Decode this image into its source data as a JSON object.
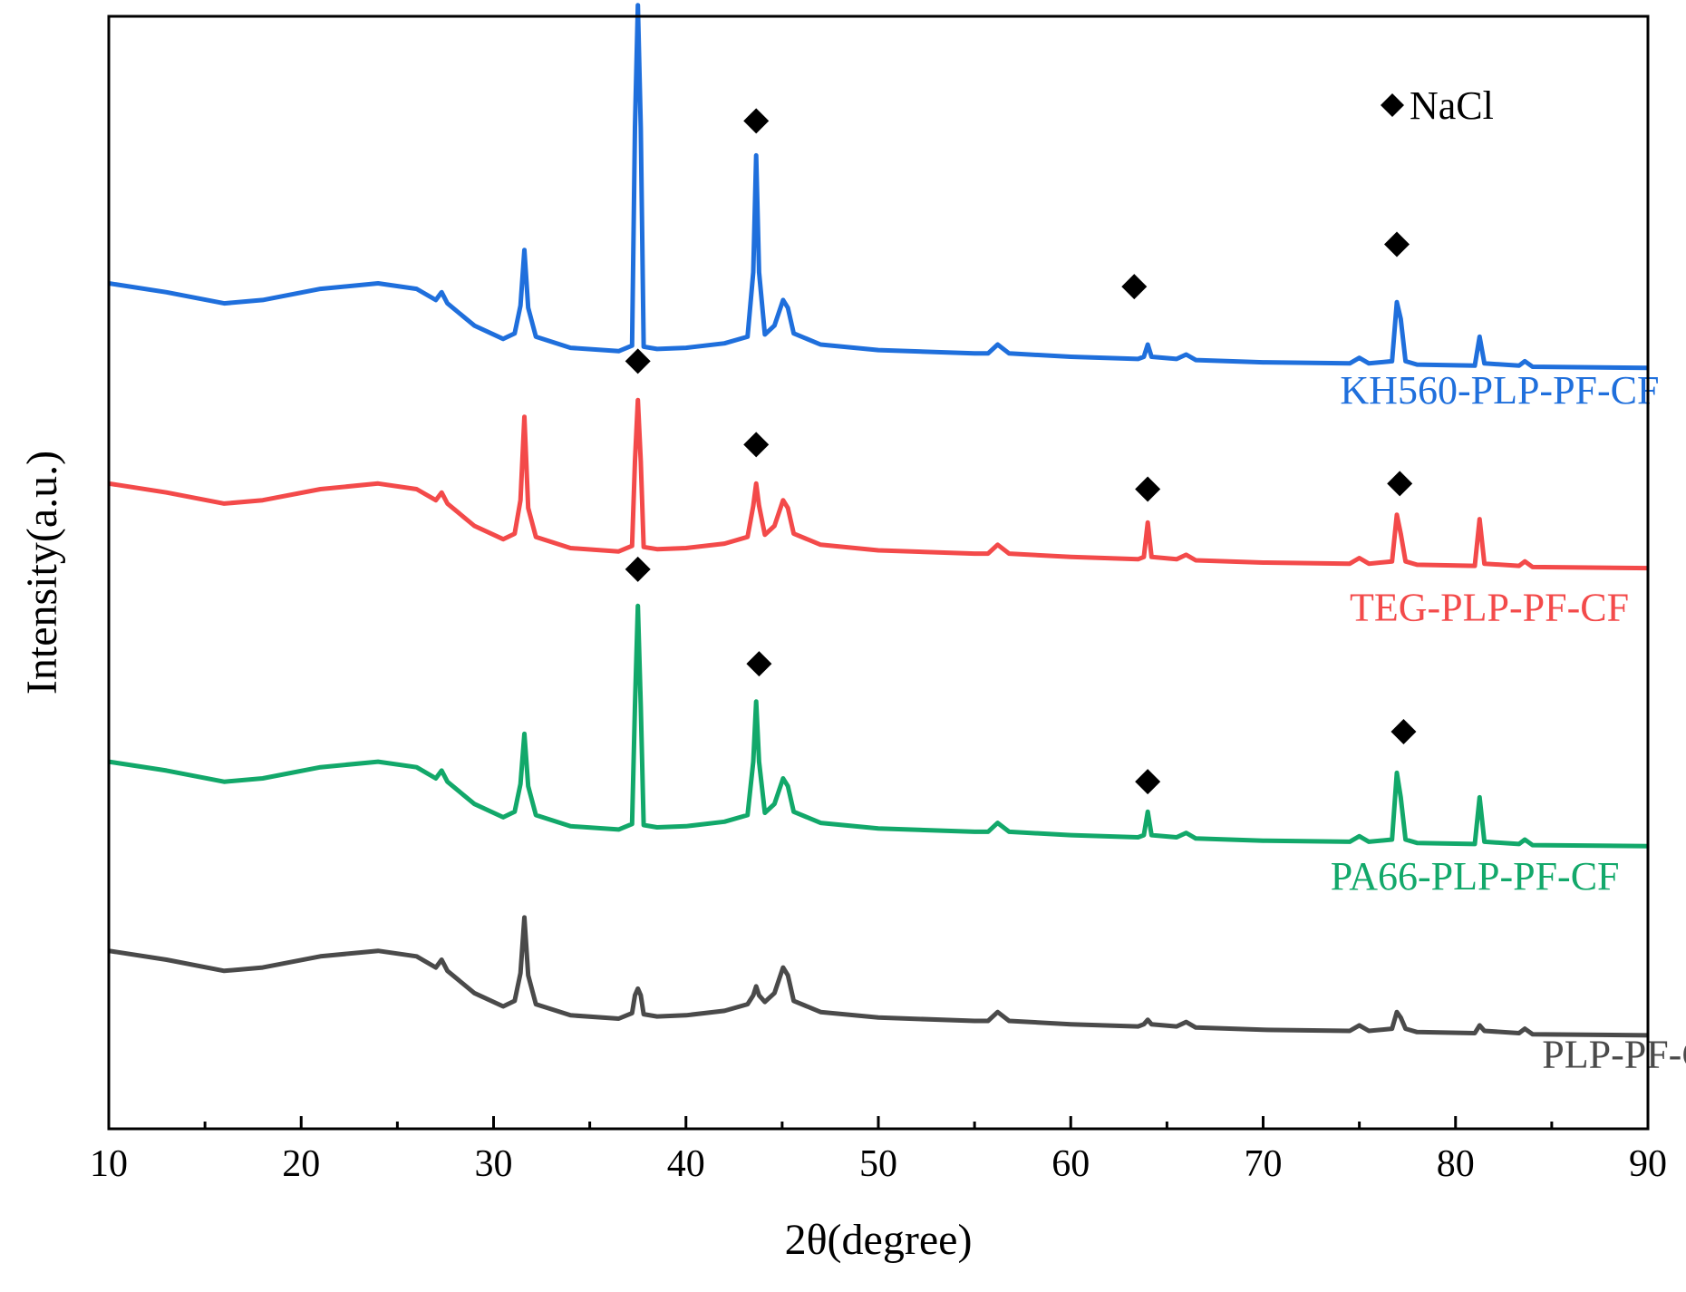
{
  "chart_data": {
    "type": "line",
    "title": "",
    "xlabel": "2θ(degree)",
    "ylabel": "Intensity(a.u.)",
    "xlim": [
      10,
      90
    ],
    "ylim": [
      0,
      1000
    ],
    "xticks": [
      10,
      20,
      30,
      40,
      50,
      60,
      70,
      80,
      90
    ],
    "yticks_shown": false,
    "grid": false,
    "legend": {
      "position": "top-right",
      "marker": "diamond",
      "label": "NaCl"
    },
    "series": [
      {
        "name": "KH560-PLP-PF-CF",
        "color": "#1f6fdc",
        "points": [
          [
            10,
            760
          ],
          [
            13,
            752
          ],
          [
            16,
            742
          ],
          [
            18,
            745
          ],
          [
            21,
            755
          ],
          [
            24,
            760
          ],
          [
            26,
            755
          ],
          [
            27,
            745
          ],
          [
            27.3,
            752
          ],
          [
            27.6,
            742
          ],
          [
            29,
            722
          ],
          [
            30.5,
            710
          ],
          [
            31.1,
            715
          ],
          [
            31.4,
            740
          ],
          [
            31.6,
            790
          ],
          [
            31.8,
            738
          ],
          [
            32.2,
            712
          ],
          [
            34,
            702
          ],
          [
            36.5,
            699
          ],
          [
            37.2,
            704
          ],
          [
            37.35,
            900
          ],
          [
            37.5,
            1010
          ],
          [
            37.65,
            900
          ],
          [
            37.8,
            703
          ],
          [
            38.5,
            701
          ],
          [
            40,
            702
          ],
          [
            42,
            706
          ],
          [
            43.2,
            712
          ],
          [
            43.5,
            770
          ],
          [
            43.65,
            875
          ],
          [
            43.8,
            770
          ],
          [
            44.1,
            714
          ],
          [
            44.6,
            722
          ],
          [
            45.05,
            745
          ],
          [
            45.3,
            738
          ],
          [
            45.6,
            715
          ],
          [
            47,
            705
          ],
          [
            50,
            700
          ],
          [
            55,
            697
          ],
          [
            55.7,
            697
          ],
          [
            56.2,
            705
          ],
          [
            56.8,
            697
          ],
          [
            60,
            694
          ],
          [
            63.5,
            692
          ],
          [
            63.8,
            694
          ],
          [
            64,
            705
          ],
          [
            64.2,
            694
          ],
          [
            65.5,
            692
          ],
          [
            66,
            696
          ],
          [
            66.5,
            691
          ],
          [
            70,
            689
          ],
          [
            74.5,
            688
          ],
          [
            75,
            693
          ],
          [
            75.5,
            688
          ],
          [
            76.7,
            690
          ],
          [
            76.95,
            743
          ],
          [
            77.15,
            728
          ],
          [
            77.4,
            690
          ],
          [
            78,
            687
          ],
          [
            81,
            686
          ],
          [
            81.25,
            712
          ],
          [
            81.5,
            688
          ],
          [
            83.3,
            686
          ],
          [
            83.6,
            690
          ],
          [
            84,
            685
          ],
          [
            90,
            684
          ]
        ]
      },
      {
        "name": "TEG-PLP-PF-CF",
        "color": "#f34a4a",
        "points": [
          [
            10,
            580
          ],
          [
            13,
            572
          ],
          [
            16,
            562
          ],
          [
            18,
            565
          ],
          [
            21,
            575
          ],
          [
            24,
            580
          ],
          [
            26,
            575
          ],
          [
            27,
            565
          ],
          [
            27.3,
            572
          ],
          [
            27.6,
            562
          ],
          [
            29,
            542
          ],
          [
            30.5,
            530
          ],
          [
            31.1,
            535
          ],
          [
            31.4,
            565
          ],
          [
            31.6,
            640
          ],
          [
            31.8,
            558
          ],
          [
            32.2,
            532
          ],
          [
            34,
            522
          ],
          [
            36.5,
            519
          ],
          [
            37.2,
            524
          ],
          [
            37.35,
            600
          ],
          [
            37.5,
            655
          ],
          [
            37.65,
            600
          ],
          [
            37.8,
            523
          ],
          [
            38.5,
            521
          ],
          [
            40,
            522
          ],
          [
            42,
            526
          ],
          [
            43.2,
            532
          ],
          [
            43.5,
            560
          ],
          [
            43.65,
            580
          ],
          [
            43.8,
            560
          ],
          [
            44.1,
            534
          ],
          [
            44.6,
            542
          ],
          [
            45.05,
            565
          ],
          [
            45.3,
            558
          ],
          [
            45.6,
            535
          ],
          [
            47,
            525
          ],
          [
            50,
            520
          ],
          [
            55,
            517
          ],
          [
            55.7,
            517
          ],
          [
            56.2,
            525
          ],
          [
            56.8,
            517
          ],
          [
            60,
            514
          ],
          [
            63.5,
            512
          ],
          [
            63.8,
            514
          ],
          [
            64,
            545
          ],
          [
            64.2,
            514
          ],
          [
            65.5,
            512
          ],
          [
            66,
            516
          ],
          [
            66.5,
            511
          ],
          [
            70,
            509
          ],
          [
            74.5,
            508
          ],
          [
            75,
            513
          ],
          [
            75.5,
            508
          ],
          [
            76.7,
            510
          ],
          [
            76.95,
            552
          ],
          [
            77.15,
            535
          ],
          [
            77.4,
            510
          ],
          [
            78,
            507
          ],
          [
            81,
            506
          ],
          [
            81.25,
            548
          ],
          [
            81.5,
            508
          ],
          [
            83.3,
            506
          ],
          [
            83.6,
            510
          ],
          [
            84,
            505
          ],
          [
            90,
            504
          ]
        ]
      },
      {
        "name": "PA66-PLP-PF-CF",
        "color": "#12a86a",
        "points": [
          [
            10,
            330
          ],
          [
            13,
            322
          ],
          [
            16,
            312
          ],
          [
            18,
            315
          ],
          [
            21,
            325
          ],
          [
            24,
            330
          ],
          [
            26,
            325
          ],
          [
            27,
            315
          ],
          [
            27.3,
            322
          ],
          [
            27.6,
            312
          ],
          [
            29,
            292
          ],
          [
            30.5,
            280
          ],
          [
            31.1,
            285
          ],
          [
            31.4,
            310
          ],
          [
            31.6,
            355
          ],
          [
            31.8,
            308
          ],
          [
            32.2,
            282
          ],
          [
            34,
            272
          ],
          [
            36.5,
            269
          ],
          [
            37.2,
            274
          ],
          [
            37.35,
            380
          ],
          [
            37.5,
            470
          ],
          [
            37.65,
            380
          ],
          [
            37.8,
            273
          ],
          [
            38.5,
            271
          ],
          [
            40,
            272
          ],
          [
            42,
            276
          ],
          [
            43.2,
            282
          ],
          [
            43.5,
            330
          ],
          [
            43.65,
            384
          ],
          [
            43.8,
            330
          ],
          [
            44.1,
            284
          ],
          [
            44.6,
            292
          ],
          [
            45.05,
            315
          ],
          [
            45.3,
            308
          ],
          [
            45.6,
            285
          ],
          [
            47,
            275
          ],
          [
            50,
            270
          ],
          [
            55,
            267
          ],
          [
            55.7,
            267
          ],
          [
            56.2,
            275
          ],
          [
            56.8,
            267
          ],
          [
            60,
            264
          ],
          [
            63.5,
            262
          ],
          [
            63.8,
            264
          ],
          [
            64,
            285
          ],
          [
            64.2,
            264
          ],
          [
            65.5,
            262
          ],
          [
            66,
            266
          ],
          [
            66.5,
            261
          ],
          [
            70,
            259
          ],
          [
            74.5,
            258
          ],
          [
            75,
            263
          ],
          [
            75.5,
            258
          ],
          [
            76.7,
            260
          ],
          [
            76.95,
            320
          ],
          [
            77.15,
            298
          ],
          [
            77.4,
            260
          ],
          [
            78,
            257
          ],
          [
            81,
            256
          ],
          [
            81.25,
            298
          ],
          [
            81.5,
            258
          ],
          [
            83.3,
            256
          ],
          [
            83.6,
            260
          ],
          [
            84,
            255
          ],
          [
            90,
            254
          ]
        ]
      },
      {
        "name": "PLP-PF-CF",
        "color": "#4a4a4a",
        "points": [
          [
            10,
            160
          ],
          [
            13,
            152
          ],
          [
            16,
            142
          ],
          [
            18,
            145
          ],
          [
            21,
            155
          ],
          [
            24,
            160
          ],
          [
            26,
            155
          ],
          [
            27,
            145
          ],
          [
            27.3,
            152
          ],
          [
            27.6,
            142
          ],
          [
            29,
            122
          ],
          [
            30.5,
            110
          ],
          [
            31.1,
            115
          ],
          [
            31.4,
            140
          ],
          [
            31.6,
            190
          ],
          [
            31.8,
            138
          ],
          [
            32.2,
            112
          ],
          [
            34,
            102
          ],
          [
            36.5,
            99
          ],
          [
            37.2,
            104
          ],
          [
            37.35,
            120
          ],
          [
            37.5,
            126
          ],
          [
            37.65,
            120
          ],
          [
            37.8,
            103
          ],
          [
            38.5,
            101
          ],
          [
            40,
            102
          ],
          [
            42,
            106
          ],
          [
            43.2,
            112
          ],
          [
            43.5,
            120
          ],
          [
            43.65,
            128
          ],
          [
            43.8,
            120
          ],
          [
            44.1,
            114
          ],
          [
            44.6,
            122
          ],
          [
            45.05,
            145
          ],
          [
            45.3,
            138
          ],
          [
            45.6,
            115
          ],
          [
            47,
            105
          ],
          [
            50,
            100
          ],
          [
            55,
            97
          ],
          [
            55.7,
            97
          ],
          [
            56.2,
            105
          ],
          [
            56.8,
            97
          ],
          [
            60,
            94
          ],
          [
            63.5,
            92
          ],
          [
            63.8,
            94
          ],
          [
            64,
            98
          ],
          [
            64.2,
            94
          ],
          [
            65.5,
            92
          ],
          [
            66,
            96
          ],
          [
            66.5,
            91
          ],
          [
            70,
            89
          ],
          [
            74.5,
            88
          ],
          [
            75,
            93
          ],
          [
            75.5,
            88
          ],
          [
            76.7,
            90
          ],
          [
            76.95,
            105
          ],
          [
            77.15,
            100
          ],
          [
            77.4,
            90
          ],
          [
            78,
            87
          ],
          [
            81,
            86
          ],
          [
            81.25,
            93
          ],
          [
            81.5,
            88
          ],
          [
            83.3,
            86
          ],
          [
            83.6,
            90
          ],
          [
            84,
            85
          ],
          [
            90,
            84
          ]
        ]
      }
    ],
    "markers": [
      {
        "series": "KH560-PLP-PF-CF",
        "x": 37.5,
        "y": 1040
      },
      {
        "series": "KH560-PLP-PF-CF",
        "x": 43.65,
        "y": 906
      },
      {
        "series": "KH560-PLP-PF-CF",
        "x": 63.3,
        "y": 757
      },
      {
        "series": "KH560-PLP-PF-CF",
        "x": 76.95,
        "y": 795
      },
      {
        "series": "TEG-PLP-PF-CF",
        "x": 37.5,
        "y": 690
      },
      {
        "series": "TEG-PLP-PF-CF",
        "x": 43.65,
        "y": 615
      },
      {
        "series": "TEG-PLP-PF-CF",
        "x": 64,
        "y": 575
      },
      {
        "series": "TEG-PLP-PF-CF",
        "x": 77.1,
        "y": 580
      },
      {
        "series": "PA66-PLP-PF-CF",
        "x": 37.5,
        "y": 503
      },
      {
        "series": "PA66-PLP-PF-CF",
        "x": 43.8,
        "y": 418
      },
      {
        "series": "PA66-PLP-PF-CF",
        "x": 64,
        "y": 312
      },
      {
        "series": "PA66-PLP-PF-CF",
        "x": 77.3,
        "y": 357
      }
    ],
    "annotations": [
      {
        "text": "KH560-PLP-PF-CF",
        "x": 74,
        "y": 652
      },
      {
        "text": "TEG-PLP-PF-CF",
        "x": 74.5,
        "y": 457
      },
      {
        "text": "PA66-PLP-PF-CF",
        "x": 73.5,
        "y": 215
      },
      {
        "text": "PLP-PF-CF",
        "x": 84.5,
        "y": 55
      }
    ]
  }
}
